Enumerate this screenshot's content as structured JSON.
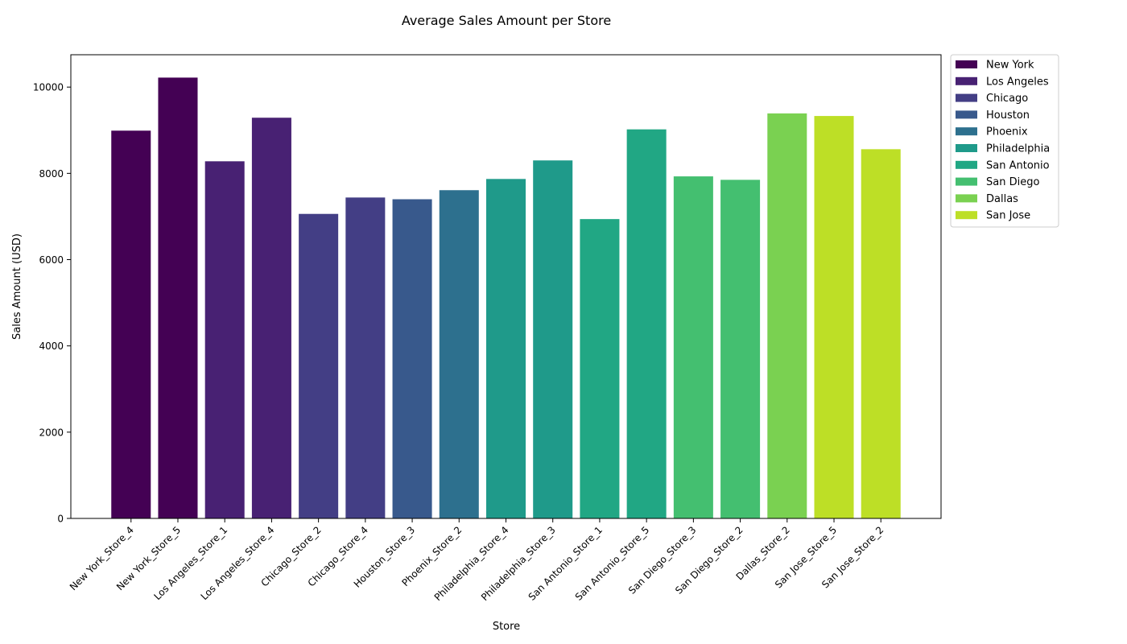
{
  "chart_data": {
    "type": "bar",
    "title": "Average Sales Amount per Store",
    "xlabel": "Store",
    "ylabel": "Sales Amount (USD)",
    "ylim": [
      0,
      10750
    ],
    "yticks": [
      0,
      2000,
      4000,
      6000,
      8000,
      10000
    ],
    "grid": false,
    "legend_position": "outside-right",
    "bars": [
      {
        "category": "New York_Store_4",
        "value": 8990,
        "group": "New York"
      },
      {
        "category": "New York_Store_5",
        "value": 10220,
        "group": "New York"
      },
      {
        "category": "Los Angeles_Store_1",
        "value": 8280,
        "group": "Los Angeles"
      },
      {
        "category": "Los Angeles_Store_4",
        "value": 9290,
        "group": "Los Angeles"
      },
      {
        "category": "Chicago_Store_2",
        "value": 7060,
        "group": "Chicago"
      },
      {
        "category": "Chicago_Store_4",
        "value": 7440,
        "group": "Chicago"
      },
      {
        "category": "Houston_Store_3",
        "value": 7400,
        "group": "Houston"
      },
      {
        "category": "Phoenix_Store_2",
        "value": 7610,
        "group": "Phoenix"
      },
      {
        "category": "Philadelphia_Store_4",
        "value": 7870,
        "group": "Philadelphia"
      },
      {
        "category": "Philadelphia_Store_3",
        "value": 8300,
        "group": "Philadelphia"
      },
      {
        "category": "San Antonio_Store_1",
        "value": 6940,
        "group": "San Antonio"
      },
      {
        "category": "San Antonio_Store_5",
        "value": 9020,
        "group": "San Antonio"
      },
      {
        "category": "San Diego_Store_3",
        "value": 7930,
        "group": "San Diego"
      },
      {
        "category": "San Diego_Store_2",
        "value": 7850,
        "group": "San Diego"
      },
      {
        "category": "Dallas_Store_2",
        "value": 9390,
        "group": "Dallas"
      },
      {
        "category": "San Jose_Store_5",
        "value": 9330,
        "group": "San Jose"
      },
      {
        "category": "San Jose_Store_2",
        "value": 8560,
        "group": "San Jose"
      }
    ],
    "legend": [
      {
        "label": "New York",
        "color": "#440154"
      },
      {
        "label": "Los Angeles",
        "color": "#482173"
      },
      {
        "label": "Chicago",
        "color": "#433e85"
      },
      {
        "label": "Houston",
        "color": "#38598c"
      },
      {
        "label": "Phoenix",
        "color": "#2d708e"
      },
      {
        "label": "Philadelphia",
        "color": "#1f9a8a"
      },
      {
        "label": "San Antonio",
        "color": "#21a784"
      },
      {
        "label": "San Diego",
        "color": "#44bf70"
      },
      {
        "label": "Dallas",
        "color": "#7ad151"
      },
      {
        "label": "San Jose",
        "color": "#bddf26"
      }
    ]
  }
}
